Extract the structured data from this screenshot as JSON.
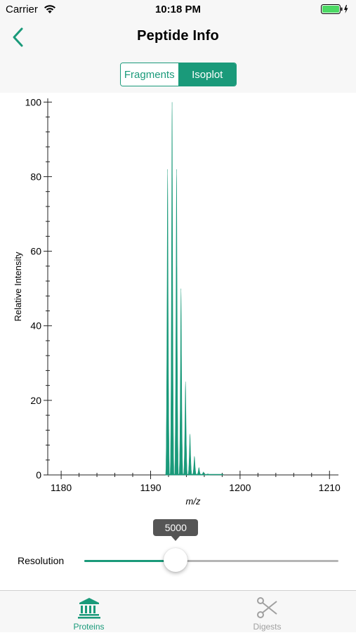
{
  "status_bar": {
    "carrier": "Carrier",
    "time": "10:18 PM"
  },
  "nav": {
    "title": "Peptide Info",
    "back_icon": "chevron-left-icon"
  },
  "segments": {
    "items": [
      {
        "label": "Fragments",
        "selected": false
      },
      {
        "label": "Isoplot",
        "selected": true
      }
    ]
  },
  "colors": {
    "accent": "#1a9a7a",
    "inactive": "#a0a0a0"
  },
  "chart_data": {
    "type": "line",
    "xlabel": "m/z",
    "ylabel": "Relative Intensity",
    "xlim": [
      1178.5,
      1211
    ],
    "ylim": [
      0,
      101
    ],
    "x_ticks": [
      1180,
      1190,
      1200,
      1210
    ],
    "y_ticks": [
      0,
      20,
      40,
      60,
      80,
      100
    ],
    "series": [
      {
        "peaks": [
          {
            "x": 1191.9,
            "y": 82
          },
          {
            "x": 1192.4,
            "y": 100
          },
          {
            "x": 1192.9,
            "y": 82
          },
          {
            "x": 1193.4,
            "y": 50
          },
          {
            "x": 1193.9,
            "y": 25
          },
          {
            "x": 1194.4,
            "y": 11
          },
          {
            "x": 1194.9,
            "y": 5
          },
          {
            "x": 1195.4,
            "y": 2
          },
          {
            "x": 1195.9,
            "y": 0.8
          },
          {
            "x": 1196.4,
            "y": 0.3
          }
        ]
      }
    ]
  },
  "resolution": {
    "label": "Resolution",
    "value": "5000",
    "fraction": 0.36
  },
  "tabs": [
    {
      "label": "Proteins",
      "icon": "bank-icon",
      "active": true
    },
    {
      "label": "Digests",
      "icon": "scissors-icon",
      "active": false
    }
  ]
}
